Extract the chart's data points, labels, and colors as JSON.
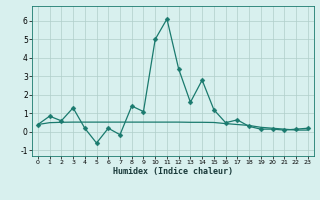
{
  "x": [
    0,
    1,
    2,
    3,
    4,
    5,
    6,
    7,
    8,
    9,
    10,
    11,
    12,
    13,
    14,
    15,
    16,
    17,
    18,
    19,
    20,
    21,
    22,
    23
  ],
  "y_main": [
    0.4,
    0.85,
    0.6,
    1.3,
    0.2,
    -0.6,
    0.2,
    -0.15,
    1.4,
    1.1,
    5.0,
    6.1,
    3.4,
    1.6,
    2.8,
    1.2,
    0.5,
    0.65,
    0.3,
    0.15,
    0.15,
    0.1,
    0.15,
    0.2
  ],
  "y_flat": [
    0.4,
    0.5,
    0.52,
    0.53,
    0.53,
    0.53,
    0.53,
    0.53,
    0.53,
    0.53,
    0.53,
    0.53,
    0.53,
    0.52,
    0.52,
    0.51,
    0.45,
    0.4,
    0.35,
    0.25,
    0.2,
    0.15,
    0.1,
    0.1
  ],
  "line_color": "#1a7a6e",
  "bg_color": "#d8f0ee",
  "grid_color": "#b0ceca",
  "xlabel": "Humidex (Indice chaleur)",
  "xlim": [
    -0.5,
    23.5
  ],
  "ylim": [
    -1.3,
    6.8
  ],
  "yticks": [
    -1,
    0,
    1,
    2,
    3,
    4,
    5,
    6
  ],
  "xticks": [
    0,
    1,
    2,
    3,
    4,
    5,
    6,
    7,
    8,
    9,
    10,
    11,
    12,
    13,
    14,
    15,
    16,
    17,
    18,
    19,
    20,
    21,
    22,
    23
  ],
  "marker_size": 2.5,
  "line_width": 0.9
}
